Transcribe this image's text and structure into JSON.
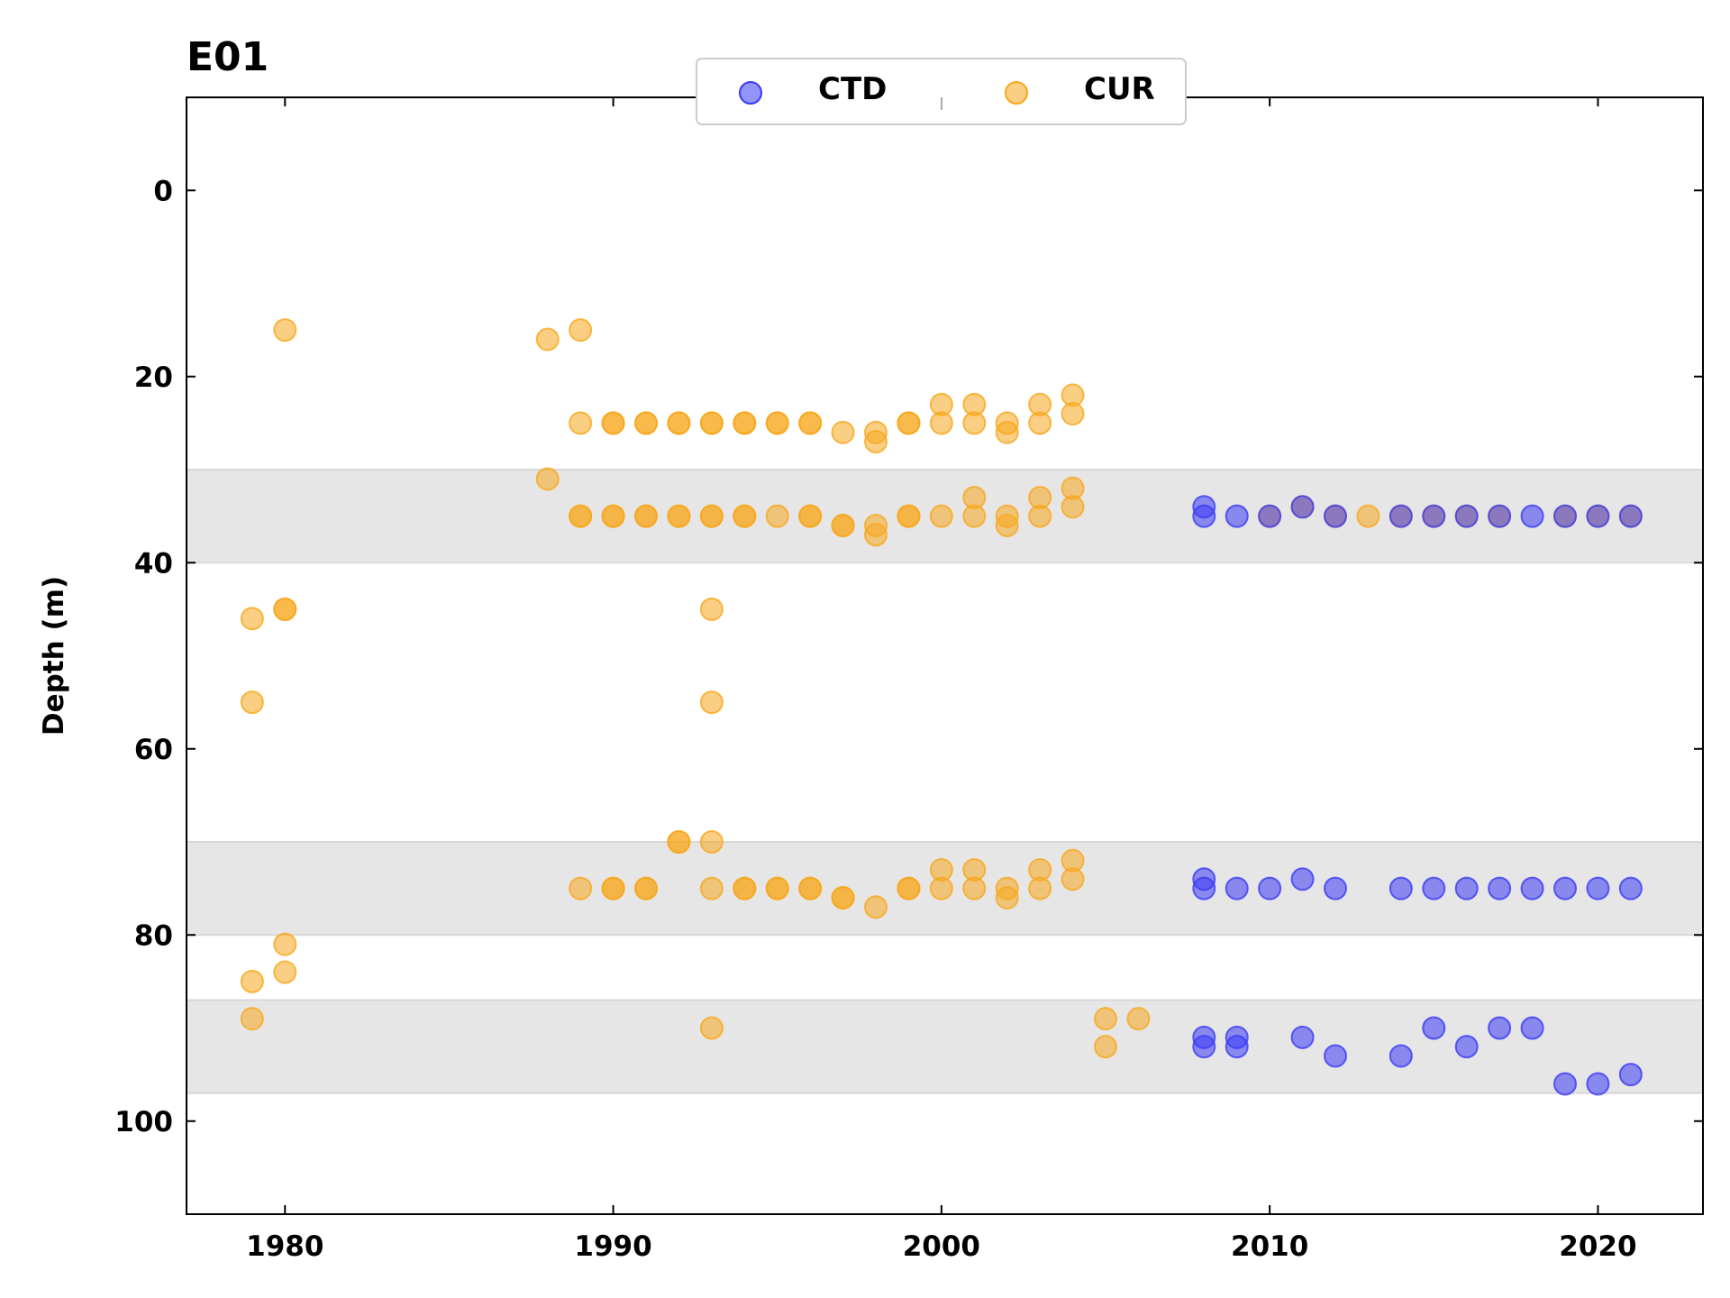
{
  "chart_data": {
    "type": "scatter",
    "title": "E01",
    "xlabel": "",
    "ylabel": "Depth (m)",
    "xlim": [
      1977,
      2023.2
    ],
    "ylim": [
      110,
      -10
    ],
    "y_inverted": true,
    "x_ticks": [
      "1980",
      "1990",
      "2000",
      "2010",
      "2020"
    ],
    "y_ticks": [
      "0",
      "20",
      "40",
      "60",
      "80",
      "100"
    ],
    "grid": false,
    "legend_position": "top-center",
    "shaded_bands": [
      [
        30,
        40
      ],
      [
        70,
        80
      ],
      [
        87,
        97
      ]
    ],
    "colors": {
      "CTD": "#3b3bf5",
      "CUR": "#f7a81e",
      "band": "#e6e6e6"
    },
    "series": [
      {
        "name": "CTD",
        "points": [
          [
            2008,
            34
          ],
          [
            2008,
            35
          ],
          [
            2009,
            35
          ],
          [
            2010,
            35
          ],
          [
            2011,
            34
          ],
          [
            2012,
            35
          ],
          [
            2014,
            35
          ],
          [
            2015,
            35
          ],
          [
            2016,
            35
          ],
          [
            2017,
            35
          ],
          [
            2018,
            35
          ],
          [
            2019,
            35
          ],
          [
            2020,
            35
          ],
          [
            2021,
            35
          ],
          [
            2008,
            74
          ],
          [
            2008,
            75
          ],
          [
            2009,
            75
          ],
          [
            2010,
            75
          ],
          [
            2011,
            74
          ],
          [
            2012,
            75
          ],
          [
            2014,
            75
          ],
          [
            2015,
            75
          ],
          [
            2016,
            75
          ],
          [
            2017,
            75
          ],
          [
            2018,
            75
          ],
          [
            2019,
            75
          ],
          [
            2020,
            75
          ],
          [
            2021,
            75
          ],
          [
            2008,
            91
          ],
          [
            2008,
            92
          ],
          [
            2009,
            91
          ],
          [
            2009,
            92
          ],
          [
            2011,
            91
          ],
          [
            2012,
            93
          ],
          [
            2014,
            93
          ],
          [
            2015,
            90
          ],
          [
            2016,
            92
          ],
          [
            2017,
            90
          ],
          [
            2018,
            90
          ],
          [
            2019,
            96
          ],
          [
            2020,
            96
          ],
          [
            2021,
            95
          ]
        ]
      },
      {
        "name": "CUR",
        "points": [
          [
            1980,
            15
          ],
          [
            1979,
            46
          ],
          [
            1980,
            45
          ],
          [
            1980,
            45
          ],
          [
            1979,
            55
          ],
          [
            1980,
            81
          ],
          [
            1979,
            85
          ],
          [
            1980,
            84
          ],
          [
            1979,
            89
          ],
          [
            1988,
            16
          ],
          [
            1988,
            31
          ],
          [
            1989,
            15
          ],
          [
            1989,
            25
          ],
          [
            1989,
            35
          ],
          [
            1989,
            35
          ],
          [
            1989,
            75
          ],
          [
            1990,
            25
          ],
          [
            1990,
            25
          ],
          [
            1990,
            35
          ],
          [
            1990,
            35
          ],
          [
            1990,
            75
          ],
          [
            1990,
            75
          ],
          [
            1991,
            25
          ],
          [
            1991,
            25
          ],
          [
            1991,
            35
          ],
          [
            1991,
            35
          ],
          [
            1991,
            75
          ],
          [
            1991,
            75
          ],
          [
            1992,
            25
          ],
          [
            1992,
            25
          ],
          [
            1992,
            35
          ],
          [
            1992,
            35
          ],
          [
            1992,
            70
          ],
          [
            1992,
            70
          ],
          [
            1993,
            25
          ],
          [
            1993,
            25
          ],
          [
            1993,
            35
          ],
          [
            1993,
            35
          ],
          [
            1993,
            45
          ],
          [
            1993,
            55
          ],
          [
            1993,
            70
          ],
          [
            1993,
            75
          ],
          [
            1993,
            90
          ],
          [
            1994,
            25
          ],
          [
            1994,
            25
          ],
          [
            1994,
            35
          ],
          [
            1994,
            35
          ],
          [
            1994,
            75
          ],
          [
            1994,
            75
          ],
          [
            1995,
            25
          ],
          [
            1995,
            25
          ],
          [
            1995,
            35
          ],
          [
            1995,
            75
          ],
          [
            1995,
            75
          ],
          [
            1996,
            25
          ],
          [
            1996,
            25
          ],
          [
            1996,
            35
          ],
          [
            1996,
            35
          ],
          [
            1996,
            75
          ],
          [
            1996,
            75
          ],
          [
            1997,
            26
          ],
          [
            1997,
            36
          ],
          [
            1997,
            36
          ],
          [
            1997,
            76
          ],
          [
            1997,
            76
          ],
          [
            1998,
            26
          ],
          [
            1998,
            27
          ],
          [
            1998,
            36
          ],
          [
            1998,
            37
          ],
          [
            1998,
            77
          ],
          [
            1999,
            25
          ],
          [
            1999,
            25
          ],
          [
            1999,
            35
          ],
          [
            1999,
            35
          ],
          [
            1999,
            75
          ],
          [
            1999,
            75
          ],
          [
            2000,
            23
          ],
          [
            2000,
            25
          ],
          [
            2000,
            35
          ],
          [
            2000,
            73
          ],
          [
            2000,
            75
          ],
          [
            2001,
            23
          ],
          [
            2001,
            25
          ],
          [
            2001,
            33
          ],
          [
            2001,
            35
          ],
          [
            2001,
            73
          ],
          [
            2001,
            75
          ],
          [
            2002,
            25
          ],
          [
            2002,
            26
          ],
          [
            2002,
            35
          ],
          [
            2002,
            36
          ],
          [
            2002,
            75
          ],
          [
            2002,
            76
          ],
          [
            2003,
            23
          ],
          [
            2003,
            25
          ],
          [
            2003,
            33
          ],
          [
            2003,
            35
          ],
          [
            2003,
            73
          ],
          [
            2003,
            75
          ],
          [
            2004,
            22
          ],
          [
            2004,
            24
          ],
          [
            2004,
            32
          ],
          [
            2004,
            34
          ],
          [
            2004,
            72
          ],
          [
            2004,
            74
          ],
          [
            2005,
            89
          ],
          [
            2005,
            92
          ],
          [
            2006,
            89
          ],
          [
            2010,
            35
          ],
          [
            2011,
            34
          ],
          [
            2012,
            35
          ],
          [
            2013,
            35
          ],
          [
            2014,
            35
          ],
          [
            2015,
            35
          ],
          [
            2016,
            35
          ],
          [
            2017,
            35
          ],
          [
            2019,
            35
          ],
          [
            2020,
            35
          ],
          [
            2021,
            35
          ]
        ]
      }
    ]
  }
}
